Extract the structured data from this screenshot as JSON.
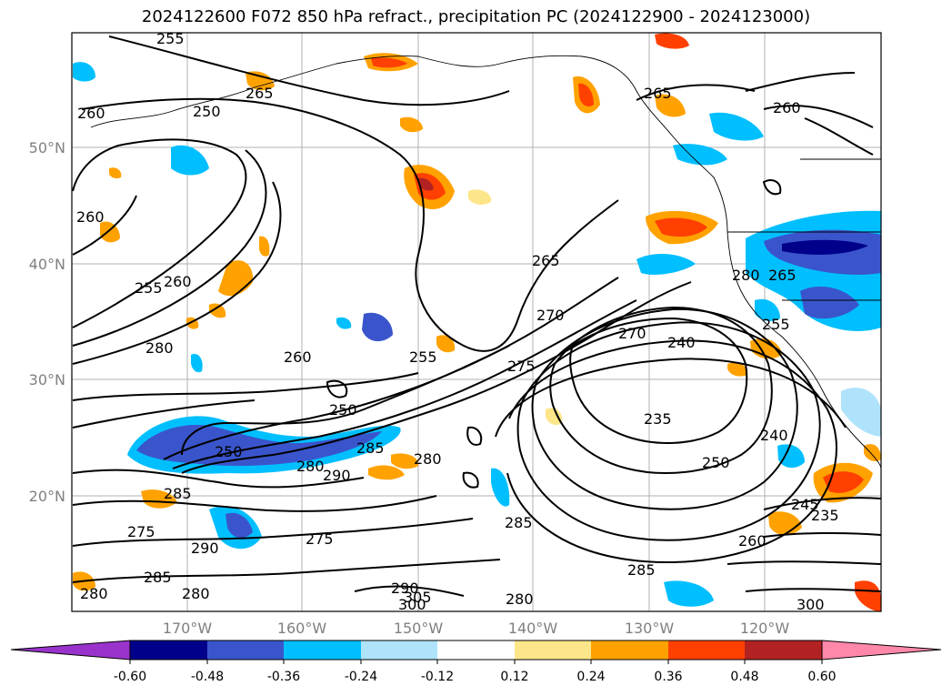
{
  "title": "2024122600 F072 850 hPa refract., precipitation PC (2024122900 - 2024123000)",
  "map": {
    "lat_labels": [
      "50°N",
      "40°N",
      "30°N",
      "20°N"
    ],
    "lon_labels": [
      "170°W",
      "160°W",
      "150°W",
      "140°W",
      "130°W",
      "120°W"
    ],
    "contour_labels": [
      "255",
      "265",
      "250",
      "260",
      "260",
      "260",
      "255",
      "280",
      "260",
      "260",
      "255",
      "250",
      "250",
      "280",
      "285",
      "290",
      "280",
      "275",
      "285",
      "265",
      "270",
      "275",
      "270",
      "240",
      "235",
      "250",
      "240",
      "280",
      "265",
      "255",
      "285",
      "290",
      "275",
      "285",
      "280",
      "290",
      "305",
      "300",
      "280",
      "285",
      "260",
      "265",
      "245",
      "235",
      "300",
      "280"
    ]
  },
  "colorbar": {
    "ticks": [
      "-0.60",
      "-0.48",
      "-0.36",
      "-0.24",
      "-0.12",
      "0.12",
      "0.24",
      "0.36",
      "0.48",
      "0.60"
    ],
    "colors": [
      "#9933cc",
      "#00008b",
      "#3a55cc",
      "#00bfff",
      "#aee3fb",
      "#ffffff",
      "#fde68a",
      "#ffa200",
      "#ff4000",
      "#b22222",
      "#ff88aa"
    ]
  }
}
